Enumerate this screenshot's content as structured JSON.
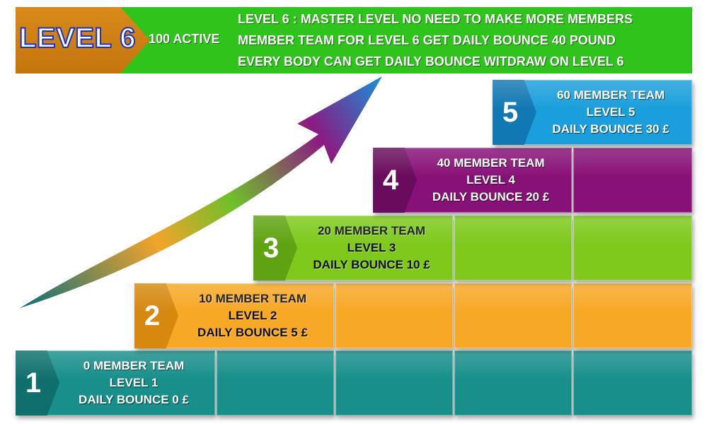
{
  "banner": {
    "title": "LEVEL 6",
    "active_label": "100 ACTIVE",
    "lines": [
      "LEVEL 6 : MASTER LEVEL NO NEED TO MAKE MORE MEMBERS",
      "MEMBER TEAM FOR LEVEL 6 GET DAILY BOUNCE 40 POUND",
      "EVERY BODY CAN GET DAILY BOUNCE WITDRAW ON LEVEL 6"
    ]
  },
  "steps": [
    {
      "number": "1",
      "team": "0 MEMBER TEAM",
      "level": "LEVEL 1",
      "bounce": "DAILY BOUNCE 0 £",
      "color": "#188f8a"
    },
    {
      "number": "2",
      "team": "10 MEMBER TEAM",
      "level": "LEVEL 2",
      "bounce": "DAILY BOUNCE 5 £",
      "color": "#f7a824"
    },
    {
      "number": "3",
      "team": "20 MEMBER TEAM",
      "level": "LEVEL 3",
      "bounce": "DAILY BOUNCE 10 £",
      "color": "#7ec91c"
    },
    {
      "number": "4",
      "team": "40 MEMBER TEAM",
      "level": "LEVEL 4",
      "bounce": "DAILY BOUNCE 20 £",
      "color": "#881178"
    },
    {
      "number": "5",
      "team": "60 MEMBER TEAM",
      "level": "LEVEL 5",
      "bounce": "DAILY BOUNCE 30 £",
      "color": "#1b9fdc"
    }
  ],
  "colors": {
    "banner_green": "#2fc41b",
    "banner_tab": "#d98a1a",
    "title_outline": "#1a33c8"
  },
  "icons": {
    "growth_arrow": "upward-curved-arrow-icon"
  }
}
